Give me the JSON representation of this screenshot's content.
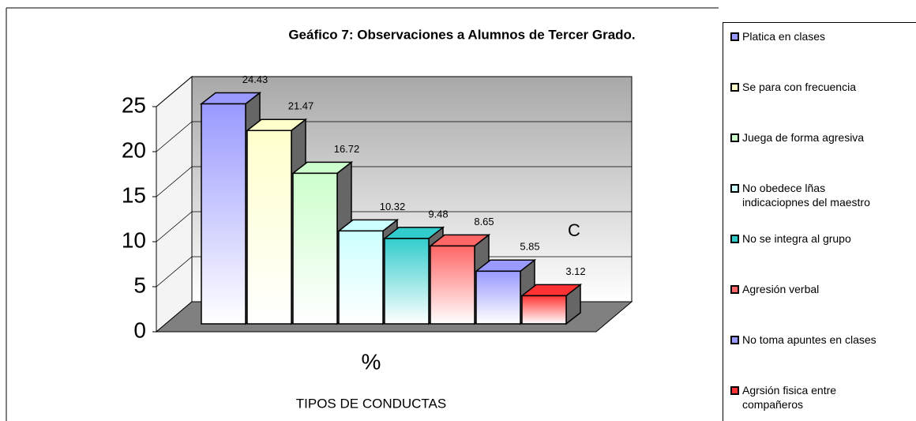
{
  "chart_data": {
    "type": "bar",
    "title": "Geáfico 7: Observaciones a Alumnos de Tercer Grado.",
    "categories": [
      "%"
    ],
    "xlabel": "TIPOS DE CONDUCTAS",
    "annotation": "C",
    "ylim": [
      0,
      25
    ],
    "yticks": [
      0,
      5,
      10,
      15,
      20,
      25
    ],
    "grid": true,
    "series": [
      {
        "name": "Platica en clases",
        "color": "#9999ff",
        "values": [
          24.43
        ]
      },
      {
        "name": "Se para con frecuencia",
        "color": "#ffffcc",
        "values": [
          21.47
        ]
      },
      {
        "name": "Juega de forma agresiva",
        "color": "#ccffcc",
        "values": [
          16.72
        ]
      },
      {
        "name": "No obedece lñas indicaciopnes del maestro",
        "color": "#ccffff",
        "values": [
          10.32
        ]
      },
      {
        "name": "No se integra al grupo",
        "color": "#33cccc",
        "values": [
          9.48
        ]
      },
      {
        "name": "Agresión verbal",
        "color": "#ff6666",
        "values": [
          8.65
        ]
      },
      {
        "name": "No toma apuntes en clases",
        "color": "#9999ff",
        "values": [
          5.85
        ]
      },
      {
        "name": "Agrsión fisica entre compañeros",
        "color": "#ff3333",
        "values": [
          3.12
        ]
      }
    ]
  }
}
